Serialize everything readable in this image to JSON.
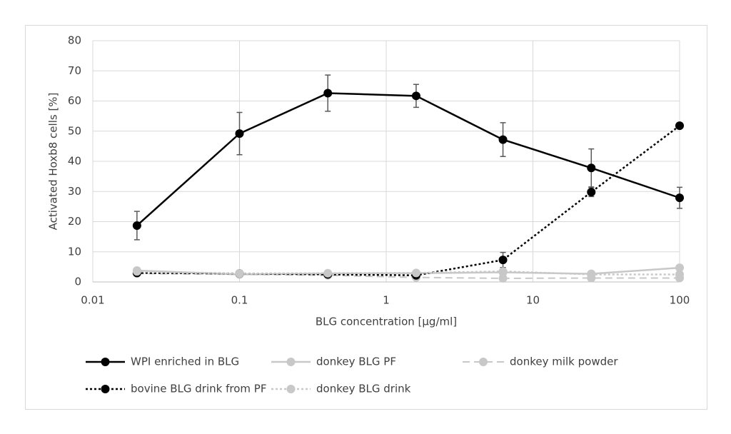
{
  "chart_data": {
    "type": "line",
    "x_label": "BLG concentration [μg/ml]",
    "y_label": "Activated Hoxb8 cells [%]",
    "x": [
      0.02,
      0.1,
      0.4,
      1.6,
      6.25,
      25,
      100
    ],
    "xscale": "log",
    "xlim": [
      0.01,
      100
    ],
    "xticks": [
      0.01,
      0.1,
      1,
      10,
      100
    ],
    "ylim": [
      0,
      80
    ],
    "yticks": [
      0,
      10,
      20,
      30,
      40,
      50,
      60,
      70,
      80
    ],
    "grid": true,
    "legend": "bottom",
    "series": [
      {
        "name": "WPI enriched in BLG",
        "color": "#000000",
        "dash": "solid",
        "values": [
          18.7,
          49.2,
          62.6,
          61.7,
          47.2,
          37.8,
          27.9
        ],
        "errors": [
          4.7,
          7,
          6,
          3.8,
          5.6,
          6.3,
          3.5
        ]
      },
      {
        "name": "donkey BLG PF",
        "color": "#c8c8c8",
        "dash": "solid",
        "values": [
          3.8,
          2.5,
          2.8,
          2.9,
          3.2,
          2.7,
          4.7
        ]
      },
      {
        "name": "donkey milk powder",
        "color": "#c8c8c8",
        "dash": "dashed",
        "values": [
          2.8,
          2.5,
          2.2,
          1.5,
          1.2,
          1.3,
          1.3
        ]
      },
      {
        "name": "bovine BLG drink from PF",
        "color": "#000000",
        "dash": "dotted",
        "values": [
          3,
          2.8,
          2.5,
          2.2,
          7.3,
          29.8,
          51.8
        ],
        "errors": [
          0.5,
          0.5,
          0.5,
          0.5,
          2.5,
          1.5,
          0.5
        ]
      },
      {
        "name": "donkey BLG drink",
        "color": "#c8c8c8",
        "dash": "dotted",
        "values": [
          3.5,
          2.8,
          2.9,
          3,
          3.5,
          2.5,
          2.5
        ]
      }
    ]
  }
}
